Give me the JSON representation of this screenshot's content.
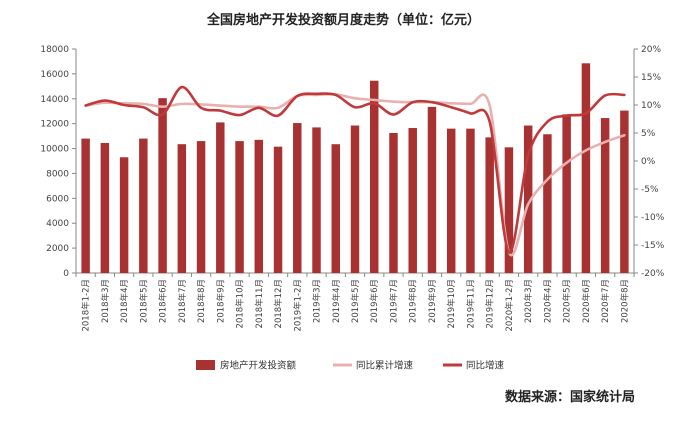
{
  "chart_data": {
    "type": "bar+line",
    "title": "全国房地产开发投资额月度走势（单位：亿元）",
    "categories": [
      "2018年1-2月",
      "2018年3月",
      "2018年4月",
      "2018年5月",
      "2018年6月",
      "2018年7月",
      "2018年8月",
      "2018年9月",
      "2018年10月",
      "2018年11月",
      "2018年12月",
      "2019年1-2月",
      "2019年3月",
      "2019年4月",
      "2019年5月",
      "2019年6月",
      "2019年7月",
      "2019年8月",
      "2019年9月",
      "2019年10月",
      "2019年11月",
      "2019年12月",
      "2020年1-2月",
      "2020年3月",
      "2020年4月",
      "2020年5月",
      "2020年6月",
      "2020年7月",
      "2020年8月"
    ],
    "series": [
      {
        "name": "房地产开发投资额",
        "type": "bar",
        "axis": "left",
        "color": "#a83232",
        "values": [
          10800,
          10450,
          9300,
          10800,
          14050,
          10350,
          10600,
          12100,
          10600,
          10700,
          10150,
          12050,
          11700,
          10350,
          11850,
          15450,
          11250,
          11650,
          13350,
          11600,
          11600,
          10900,
          10100,
          11850,
          11150,
          12750,
          16850,
          12450,
          13050
        ]
      },
      {
        "name": "同比累计增速",
        "type": "line",
        "axis": "right",
        "color": "#e8b0ae",
        "values": [
          9.9,
          10.4,
          10.3,
          10.2,
          9.7,
          10.2,
          10.1,
          9.9,
          9.7,
          9.7,
          9.5,
          11.6,
          11.8,
          11.9,
          11.2,
          10.9,
          10.6,
          10.5,
          10.5,
          10.3,
          10.2,
          9.9,
          -16.3,
          -7.7,
          -3.3,
          -0.3,
          1.9,
          3.4,
          4.6
        ]
      },
      {
        "name": "同比增速",
        "type": "line",
        "axis": "right",
        "color": "#c0393b",
        "values": [
          9.9,
          10.8,
          10.0,
          9.6,
          8.3,
          13.2,
          9.5,
          9.0,
          8.2,
          9.5,
          8.1,
          11.6,
          12.0,
          11.8,
          9.6,
          10.3,
          8.3,
          10.5,
          10.5,
          9.6,
          8.5,
          7.0,
          -16.3,
          1.0,
          7.0,
          8.1,
          8.5,
          11.7,
          11.8
        ]
      }
    ],
    "y_left": {
      "min": 0,
      "max": 18000,
      "ticks": [
        "0",
        "2000",
        "4000",
        "6000",
        "8000",
        "10000",
        "12000",
        "14000",
        "16000",
        "18000"
      ]
    },
    "y_right": {
      "min": -20,
      "max": 20,
      "ticks": [
        "-20%",
        "-15%",
        "-10%",
        "-5%",
        "0%",
        "5%",
        "10%",
        "15%",
        "20%"
      ]
    },
    "grid": false,
    "legend_position": "bottom"
  },
  "source": "数据来源：国家统计局"
}
